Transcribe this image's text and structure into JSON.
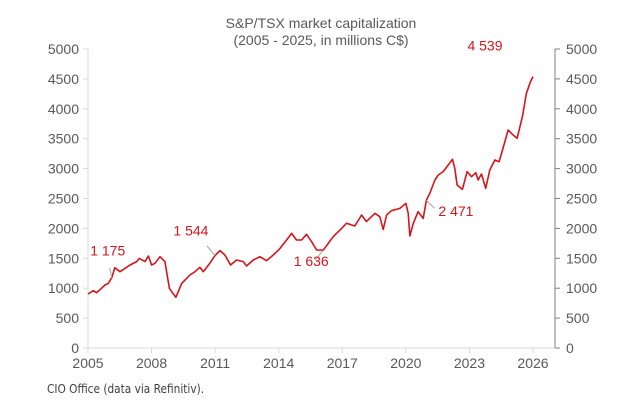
{
  "chart_data": {
    "type": "line",
    "title": "S&P/TSX market capitalization",
    "subtitle": "(2005 - 2025, in millions C$)",
    "xlabel": "",
    "ylabel": "",
    "xlim": [
      2005,
      2027
    ],
    "ylim": [
      0,
      5000
    ],
    "x_ticks": [
      2005,
      2008,
      2011,
      2014,
      2017,
      2020,
      2023,
      2026
    ],
    "y_ticks": [
      0,
      500,
      1000,
      1500,
      2000,
      2500,
      3000,
      3500,
      4000,
      4500,
      5000
    ],
    "grid": false,
    "secondary_y_axis": true,
    "line_color": "#D7141A",
    "annotation_color": "#D7141A",
    "series": [
      {
        "x": [
          2005.0,
          2005.25,
          2005.41,
          2005.8,
          2005.96,
          2006.12,
          2006.27,
          2006.51,
          2006.75,
          2006.98,
          2007.3,
          2007.42,
          2007.69,
          2007.85,
          2008.0,
          2008.16,
          2008.4,
          2008.63,
          2008.84,
          2009.0,
          2009.15,
          2009.42,
          2009.81,
          2010.05,
          2010.28,
          2010.44,
          2010.75,
          2010.99,
          2011.23,
          2011.46,
          2011.73,
          2012.01,
          2012.33,
          2012.48,
          2012.8,
          2013.11,
          2013.43,
          2013.74,
          2014.03,
          2014.37,
          2014.61,
          2014.84,
          2015.08,
          2015.31,
          2015.55,
          2015.79,
          2016.1,
          2016.34,
          2016.57,
          2016.97,
          2017.2,
          2017.59,
          2017.91,
          2018.14,
          2018.54,
          2018.77,
          2018.93,
          2019.09,
          2019.32,
          2019.72,
          2020.0,
          2020.11,
          2020.19,
          2020.35,
          2020.58,
          2020.82,
          2020.97,
          2021.13,
          2021.37,
          2021.53,
          2021.76,
          2022.0,
          2022.2,
          2022.31,
          2022.42,
          2022.67,
          2022.89,
          2023.1,
          2023.3,
          2023.41,
          2023.57,
          2023.77,
          2023.96,
          2024.2,
          2024.4,
          2024.56,
          2024.83,
          2025.06,
          2025.25,
          2025.5,
          2025.69,
          2025.88,
          2026.0
        ],
        "values": [
          903,
          959,
          925,
          1053,
          1081,
          1175,
          1343,
          1276,
          1332,
          1388,
          1444,
          1499,
          1444,
          1538,
          1388,
          1416,
          1527,
          1444,
          998,
          914,
          847,
          1081,
          1221,
          1276,
          1349,
          1276,
          1416,
          1544,
          1628,
          1555,
          1388,
          1472,
          1444,
          1371,
          1472,
          1527,
          1460,
          1555,
          1650,
          1806,
          1917,
          1806,
          1806,
          1901,
          1778,
          1639,
          1636,
          1750,
          1862,
          2001,
          2085,
          2040,
          2224,
          2113,
          2252,
          2196,
          1984,
          2224,
          2296,
          2335,
          2419,
          2252,
          1873,
          2085,
          2280,
          2168,
          2471,
          2586,
          2809,
          2893,
          2949,
          3060,
          3155,
          3004,
          2726,
          2653,
          2949,
          2865,
          2932,
          2809,
          2910,
          2670,
          2977,
          3144,
          3116,
          3311,
          3645,
          3562,
          3506,
          3868,
          4259,
          4454,
          4539
        ]
      }
    ],
    "annotations": [
      {
        "text": "1 175",
        "x": 2006.12,
        "y": 1175
      },
      {
        "text": "1 544",
        "x": 2010.99,
        "y": 1544
      },
      {
        "text": "1 636",
        "x": 2016.1,
        "y": 1636
      },
      {
        "text": "2 471",
        "x": 2020.97,
        "y": 2471
      },
      {
        "text": "4 539",
        "x": 2026.0,
        "y": 4539
      }
    ]
  },
  "footnote": "CIO Office (data via Refinitiv)."
}
